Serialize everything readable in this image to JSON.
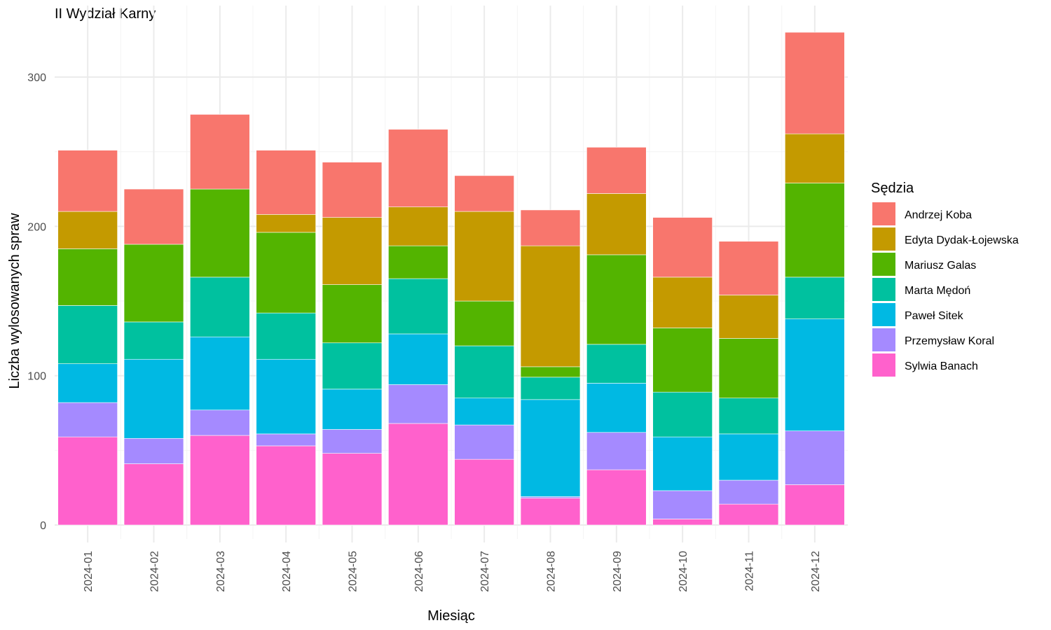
{
  "chart_data": {
    "type": "bar",
    "stacked": true,
    "title": "II Wydział Karny",
    "xlabel": "Miesiąc",
    "ylabel": "Liczba wylosowanych spraw",
    "ylim": [
      0,
      330
    ],
    "yticks": [
      0,
      100,
      200,
      300
    ],
    "grid": true,
    "legend_title": "Sędzia",
    "legend_position": "right",
    "categories": [
      "2024-01",
      "2024-02",
      "2024-03",
      "2024-04",
      "2024-05",
      "2024-06",
      "2024-07",
      "2024-08",
      "2024-09",
      "2024-10",
      "2024-11",
      "2024-12"
    ],
    "series": [
      {
        "name": "Sylwia Banach",
        "color": "#FF61CC",
        "values": [
          59,
          41,
          60,
          53,
          48,
          68,
          44,
          18,
          37,
          4,
          14,
          27
        ]
      },
      {
        "name": "Przemysław Koral",
        "color": "#A58AFF",
        "values": [
          23,
          17,
          17,
          8,
          16,
          26,
          23,
          1,
          25,
          19,
          16,
          36
        ]
      },
      {
        "name": "Paweł Sitek",
        "color": "#00B9E3",
        "values": [
          26,
          53,
          49,
          50,
          27,
          34,
          18,
          65,
          33,
          36,
          31,
          75
        ]
      },
      {
        "name": "Marta Mędoń",
        "color": "#00C19F",
        "values": [
          39,
          25,
          40,
          31,
          31,
          37,
          35,
          15,
          26,
          30,
          24,
          28
        ]
      },
      {
        "name": "Mariusz Galas",
        "color": "#53B400",
        "values": [
          38,
          52,
          59,
          54,
          39,
          22,
          30,
          7,
          60,
          43,
          40,
          63
        ]
      },
      {
        "name": "Edyta Dydak-Łojewska",
        "color": "#C49A00",
        "values": [
          25,
          0,
          0,
          12,
          45,
          26,
          60,
          81,
          41,
          34,
          29,
          33
        ]
      },
      {
        "name": "Andrzej Koba",
        "color": "#F8766D",
        "values": [
          41,
          37,
          50,
          43,
          37,
          52,
          24,
          24,
          31,
          40,
          36,
          68
        ]
      }
    ],
    "legend_order": [
      "Andrzej Koba",
      "Edyta Dydak-Łojewska",
      "Mariusz Galas",
      "Marta Mędoń",
      "Paweł Sitek",
      "Przemysław Koral",
      "Sylwia Banach"
    ]
  }
}
